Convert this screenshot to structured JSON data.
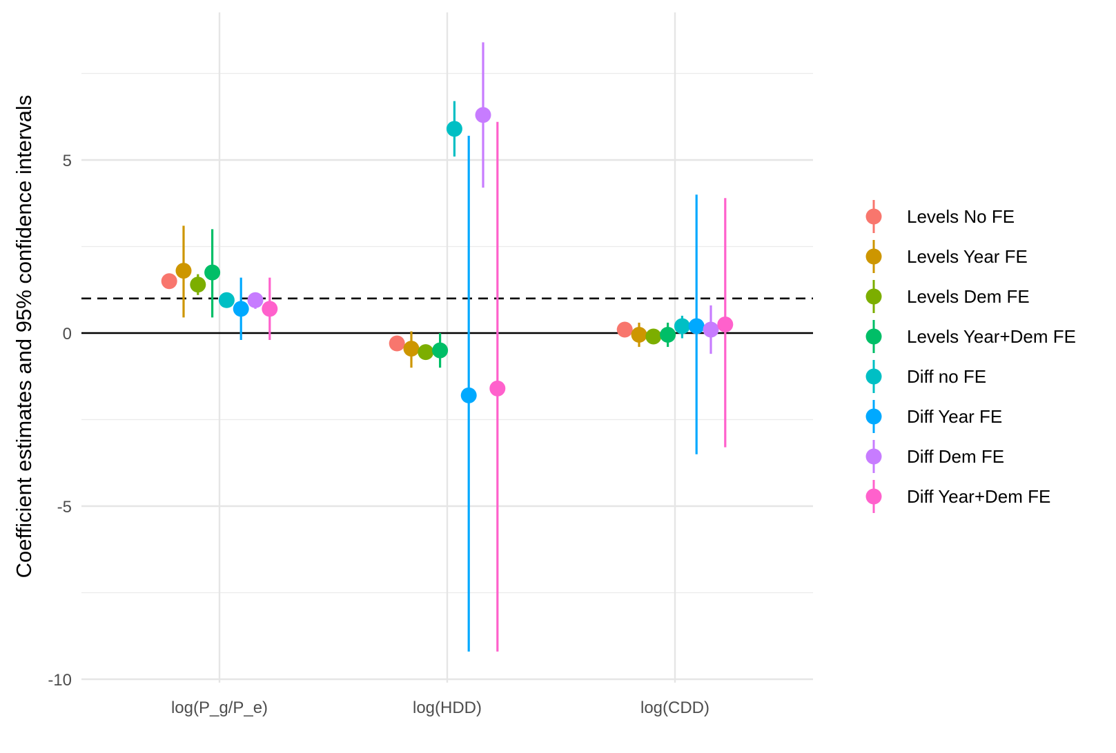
{
  "chart_data": {
    "type": "pointrange",
    "title": "",
    "xlabel": "",
    "ylabel": "Coefficient estimates and 95% confidence intervals",
    "ylim": [
      -10,
      9
    ],
    "yticks": [
      -10,
      -5,
      0,
      5
    ],
    "ytick_labels": [
      "-10",
      "-5",
      "0",
      "5"
    ],
    "categories": [
      "log(P_g/P_e)",
      "log(HDD)",
      "log(CDD)"
    ],
    "grid": true,
    "legend_position": "right",
    "reference_lines": [
      {
        "y": 0,
        "style": "solid",
        "color": "#000000"
      },
      {
        "y": 1,
        "style": "dashed",
        "color": "#000000"
      }
    ],
    "series": [
      {
        "name": "Levels No FE",
        "color": "#F8766D",
        "estimates": [
          1.5,
          -0.3,
          0.1
        ],
        "lower": [
          1.5,
          -0.3,
          0.1
        ],
        "upper": [
          1.5,
          -0.3,
          0.1
        ]
      },
      {
        "name": "Levels Year FE",
        "color": "#CD9600",
        "estimates": [
          1.8,
          -0.45,
          -0.05
        ],
        "lower": [
          0.45,
          -1.0,
          -0.4
        ],
        "upper": [
          3.1,
          0.05,
          0.3
        ]
      },
      {
        "name": "Levels Dem FE",
        "color": "#7CAE00",
        "estimates": [
          1.4,
          -0.55,
          -0.1
        ],
        "lower": [
          1.1,
          -0.55,
          -0.1
        ],
        "upper": [
          1.7,
          -0.55,
          -0.1
        ]
      },
      {
        "name": "Levels Year+Dem FE",
        "color": "#00BE67",
        "estimates": [
          1.75,
          -0.5,
          -0.05
        ],
        "lower": [
          0.45,
          -1.0,
          -0.4
        ],
        "upper": [
          3.0,
          0.0,
          0.3
        ]
      },
      {
        "name": "Diff no FE",
        "color": "#00BFC4",
        "estimates": [
          0.95,
          5.9,
          0.2
        ],
        "lower": [
          0.95,
          5.1,
          -0.15
        ],
        "upper": [
          0.95,
          6.7,
          0.5
        ]
      },
      {
        "name": "Diff Year FE",
        "color": "#00A9FF",
        "estimates": [
          0.7,
          -1.8,
          0.2
        ],
        "lower": [
          -0.2,
          -9.2,
          -3.5
        ],
        "upper": [
          1.6,
          5.7,
          4.0
        ]
      },
      {
        "name": "Diff Dem FE",
        "color": "#C77CFF",
        "estimates": [
          0.95,
          6.3,
          0.1
        ],
        "lower": [
          0.7,
          4.2,
          -0.6
        ],
        "upper": [
          1.15,
          8.4,
          0.8
        ]
      },
      {
        "name": "Diff Year+Dem FE",
        "color": "#FF61CC",
        "estimates": [
          0.7,
          -1.6,
          0.25
        ],
        "lower": [
          -0.2,
          -9.2,
          -3.3
        ],
        "upper": [
          1.6,
          6.1,
          3.9
        ]
      }
    ]
  }
}
